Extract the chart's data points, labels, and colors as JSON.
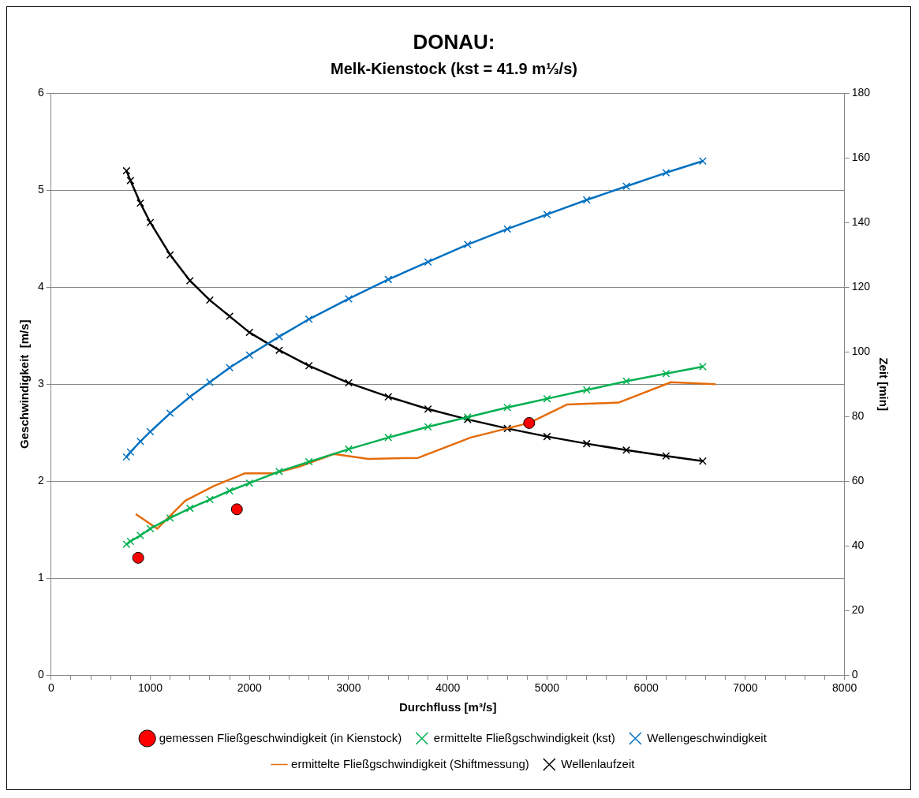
{
  "chart_data": {
    "type": "line",
    "title": "DONAU:",
    "subtitle": "Melk-Kienstock (kst = 41.9 m⅓/s)",
    "xlabel": "Durchfluss [m³/s]",
    "ylabel": "Geschwindigkeit  [m/s]",
    "y2label": "Zeit [min]",
    "xlim": [
      0,
      8000
    ],
    "xticks": [
      0,
      {
        "value": 200,
        "label": null
      },
      {
        "value": 400,
        "label": null
      },
      {
        "value": 600,
        "label": null
      },
      {
        "value": 800,
        "label": null
      },
      1000,
      {
        "value": 1200,
        "label": null
      },
      {
        "value": 1400,
        "label": null
      },
      {
        "value": 1600,
        "label": null
      },
      {
        "value": 1800,
        "label": null
      },
      2000,
      {
        "value": 2200,
        "label": null
      },
      {
        "value": 2400,
        "label": null
      },
      {
        "value": 2600,
        "label": null
      },
      {
        "value": 2800,
        "label": null
      },
      3000,
      {
        "value": 3200,
        "label": null
      },
      {
        "value": 3400,
        "label": null
      },
      {
        "value": 3600,
        "label": null
      },
      {
        "value": 3800,
        "label": null
      },
      4000,
      {
        "value": 4200,
        "label": null
      },
      {
        "value": 4400,
        "label": null
      },
      {
        "value": 4600,
        "label": null
      },
      {
        "value": 4800,
        "label": null
      },
      5000,
      {
        "value": 5200,
        "label": null
      },
      {
        "value": 5400,
        "label": null
      },
      {
        "value": 5600,
        "label": null
      },
      {
        "value": 5800,
        "label": null
      },
      6000,
      {
        "value": 6200,
        "label": null
      },
      {
        "value": 6400,
        "label": null
      },
      {
        "value": 6600,
        "label": null
      },
      {
        "value": 6800,
        "label": null
      },
      7000,
      {
        "value": 7200,
        "label": null
      },
      {
        "value": 7400,
        "label": null
      },
      {
        "value": 7600,
        "label": null
      },
      {
        "value": 7800,
        "label": null
      },
      8000
    ],
    "ylim": [
      0,
      6
    ],
    "yticks": [
      0,
      1,
      2,
      3,
      4,
      5,
      6
    ],
    "y2lim": [
      0,
      180
    ],
    "y2ticks": [
      0,
      20,
      40,
      60,
      80,
      100,
      120,
      140,
      160,
      180
    ],
    "grid": "y",
    "legend": "bottom",
    "series": [
      {
        "name": "gemessen Fließgeschwindigkeit (in Kienstock)",
        "type": "scatter",
        "marker": "circle",
        "color": "#ff0000",
        "x": [
          878,
          1873,
          4820
        ],
        "values": [
          1.21,
          1.71,
          2.6
        ]
      },
      {
        "name": "ermittelte Fließgschwindigkeit (kst)",
        "type": "line",
        "marker": "cross",
        "color": "#00b050",
        "x": [
          760,
          800,
          900,
          1000,
          1200,
          1400,
          1600,
          1800,
          2000,
          2300,
          2600,
          3000,
          3400,
          3800,
          4200,
          4600,
          5000,
          5400,
          5800,
          6200,
          6570
        ],
        "values": [
          1.35,
          1.38,
          1.44,
          1.51,
          1.62,
          1.72,
          1.81,
          1.9,
          1.98,
          2.1,
          2.2,
          2.33,
          2.45,
          2.56,
          2.66,
          2.76,
          2.85,
          2.94,
          3.03,
          3.11,
          3.18
        ]
      },
      {
        "name": "Wellengeschwindigkeit",
        "type": "line",
        "marker": "cross",
        "color": "#0070c0",
        "x": [
          760,
          800,
          900,
          1000,
          1200,
          1400,
          1600,
          1800,
          2000,
          2300,
          2600,
          3000,
          3400,
          3800,
          4200,
          4600,
          5000,
          5400,
          5800,
          6200,
          6570
        ],
        "values": [
          2.25,
          2.3,
          2.41,
          2.51,
          2.7,
          2.87,
          3.02,
          3.17,
          3.3,
          3.49,
          3.67,
          3.88,
          4.08,
          4.26,
          4.44,
          4.6,
          4.75,
          4.9,
          5.04,
          5.18,
          5.3
        ]
      },
      {
        "name": "ermittelte Fließgschwindigkeit (Shiftmessung)",
        "type": "line",
        "marker": "none",
        "color": "#e46c0a",
        "x": [
          854,
          1071,
          1354,
          1640,
          1951,
          2241,
          2500,
          2850,
          3200,
          3700,
          4230,
          4820,
          5200,
          5720,
          6250,
          6700
        ],
        "values": [
          1.66,
          1.51,
          1.8,
          1.95,
          2.08,
          2.08,
          2.15,
          2.28,
          2.23,
          2.24,
          2.45,
          2.6,
          2.79,
          2.81,
          3.02,
          3.0
        ]
      },
      {
        "name": "Wellenlaufzeit",
        "type": "line",
        "axis": "y2",
        "marker": "cross",
        "color": "#000000",
        "x": [
          760,
          800,
          900,
          1000,
          1200,
          1400,
          1600,
          1800,
          2000,
          2300,
          2600,
          3000,
          3400,
          3800,
          4200,
          4600,
          5000,
          5400,
          5800,
          6200,
          6570
        ],
        "values": [
          156,
          153,
          146,
          140,
          130,
          122,
          116,
          111,
          106,
          100.5,
          95.7,
          90.4,
          86.1,
          82.3,
          79.1,
          76.3,
          73.8,
          71.6,
          69.6,
          67.8,
          66.2
        ]
      }
    ]
  }
}
